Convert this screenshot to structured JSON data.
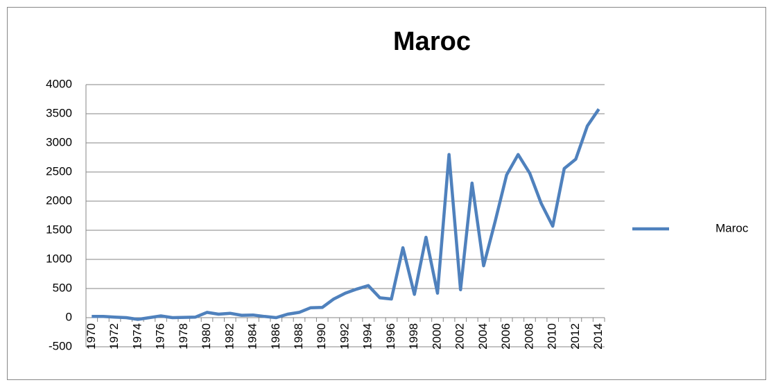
{
  "chart_data": {
    "type": "line",
    "title": "Maroc",
    "categories": [
      "1970",
      null,
      "1972",
      null,
      "1974",
      null,
      "1976",
      null,
      "1978",
      null,
      "1980",
      null,
      "1982",
      null,
      "1984",
      null,
      "1986",
      null,
      "1988",
      null,
      "1990",
      null,
      "1992",
      null,
      "1994",
      null,
      "1996",
      null,
      "1998",
      null,
      "2000",
      null,
      "2002",
      null,
      "2004",
      null,
      "2006",
      null,
      "2008",
      null,
      "2010",
      null,
      "2012",
      null,
      "2014"
    ],
    "series": [
      {
        "name": "Maroc",
        "color": "#4f81bd",
        "values": [
          20,
          20,
          10,
          0,
          -30,
          0,
          30,
          0,
          5,
          10,
          90,
          60,
          75,
          40,
          45,
          20,
          0,
          60,
          90,
          170,
          175,
          320,
          420,
          490,
          550,
          340,
          320,
          1200,
          400,
          1380,
          420,
          2800,
          480,
          2310,
          890,
          1650,
          2450,
          2800,
          2480,
          1960,
          1570,
          2560,
          2720,
          3290,
          3580
        ]
      }
    ],
    "ylim": [
      -500,
      4000
    ],
    "yticks": [
      -500,
      0,
      500,
      1000,
      1500,
      2000,
      2500,
      3000,
      3500,
      4000
    ],
    "grid": true,
    "legend": "right"
  }
}
